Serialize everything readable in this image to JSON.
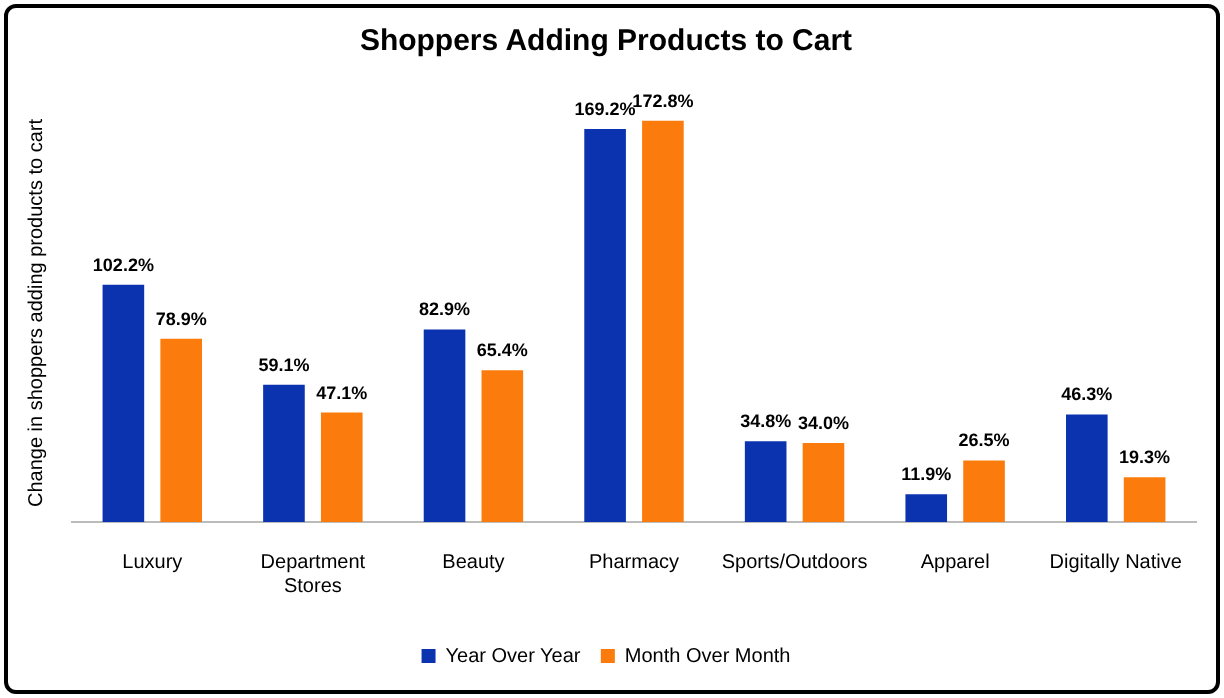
{
  "chart_data": {
    "type": "bar",
    "title": "Shoppers Adding Products to Cart",
    "ylabel": "Change in shoppers adding products to cart",
    "categories": [
      "Luxury",
      "Department Stores",
      "Beauty",
      "Pharmacy",
      "Sports/Outdoors",
      "Apparel",
      "Digitally Native"
    ],
    "series": [
      {
        "name": "Year Over Year",
        "color": "#0b33b0",
        "values": [
          102.2,
          59.1,
          82.9,
          169.2,
          34.8,
          11.9,
          46.3
        ],
        "value_labels": [
          "102.2%",
          "59.1%",
          "82.9%",
          "169.2%",
          "34.8%",
          "11.9%",
          "46.3%"
        ]
      },
      {
        "name": "Month Over Month",
        "color": "#fb7c0c",
        "values": [
          78.9,
          47.1,
          65.4,
          172.8,
          34.0,
          26.5,
          19.3
        ],
        "value_labels": [
          "78.9%",
          "47.1%",
          "65.4%",
          "172.8%",
          "34.0%",
          "26.5%",
          "19.3%"
        ]
      }
    ],
    "legend": "bottom",
    "grid": false
  }
}
